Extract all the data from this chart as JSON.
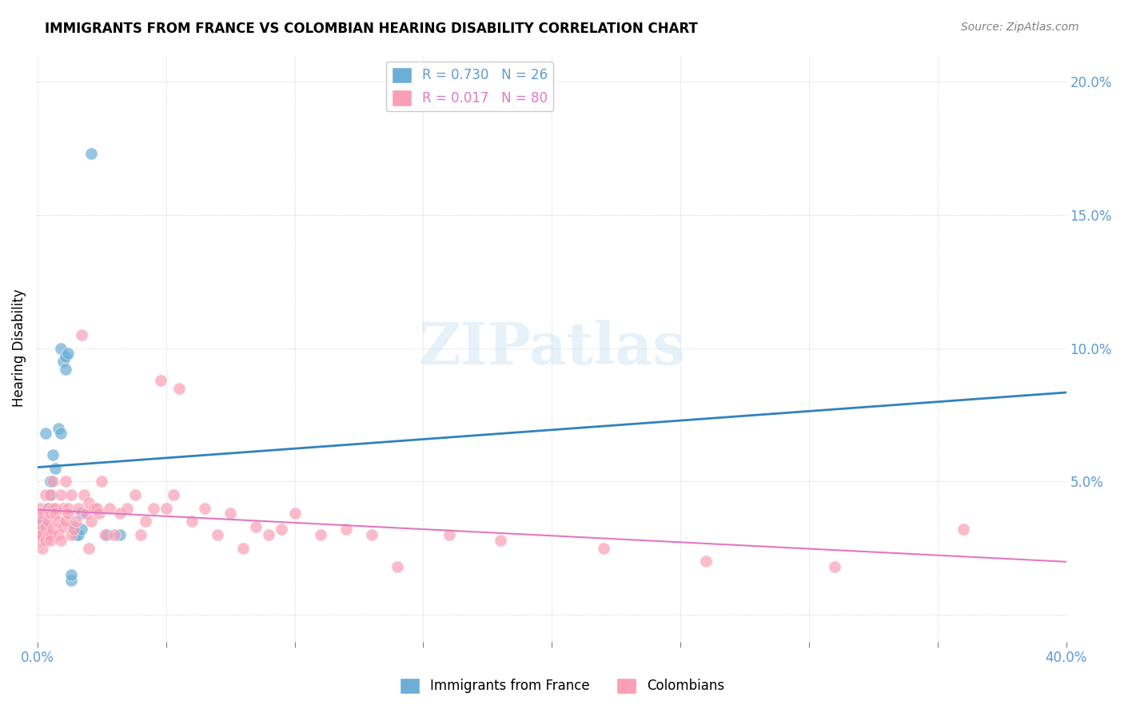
{
  "title": "IMMIGRANTS FROM FRANCE VS COLOMBIAN HEARING DISABILITY CORRELATION CHART",
  "source": "Source: ZipAtlas.com",
  "ylabel": "Hearing Disability",
  "xlabel": "",
  "xlim": [
    0.0,
    0.4
  ],
  "ylim": [
    -0.01,
    0.21
  ],
  "xticks": [
    0.0,
    0.05,
    0.1,
    0.15,
    0.2,
    0.25,
    0.3,
    0.35,
    0.4
  ],
  "xtick_labels": [
    "0.0%",
    "",
    "",
    "",
    "",
    "",
    "",
    "",
    "40.0%"
  ],
  "yticks": [
    0.0,
    0.05,
    0.1,
    0.15,
    0.2
  ],
  "ytick_labels": [
    "",
    "5.0%",
    "10.0%",
    "15.0%",
    "20.0%"
  ],
  "legend_r1": "R = 0.730",
  "legend_n1": "N = 26",
  "legend_r2": "R = 0.017",
  "legend_n2": "N = 80",
  "color_blue": "#6baed6",
  "color_pink": "#fa9fb5",
  "color_blue_line": "#3182bd",
  "color_pink_line": "#e377c2",
  "watermark": "ZIPatlas",
  "france_x": [
    0.001,
    0.002,
    0.002,
    0.003,
    0.004,
    0.005,
    0.005,
    0.006,
    0.007,
    0.008,
    0.009,
    0.009,
    0.01,
    0.011,
    0.011,
    0.012,
    0.013,
    0.013,
    0.014,
    0.015,
    0.016,
    0.017,
    0.017,
    0.021,
    0.027,
    0.032
  ],
  "france_y": [
    0.03,
    0.035,
    0.032,
    0.068,
    0.04,
    0.05,
    0.045,
    0.06,
    0.055,
    0.07,
    0.068,
    0.1,
    0.095,
    0.097,
    0.092,
    0.098,
    0.013,
    0.015,
    0.033,
    0.03,
    0.03,
    0.032,
    0.038,
    0.173,
    0.03,
    0.03
  ],
  "colombia_x": [
    0.001,
    0.001,
    0.001,
    0.001,
    0.002,
    0.002,
    0.002,
    0.002,
    0.003,
    0.003,
    0.003,
    0.004,
    0.004,
    0.004,
    0.005,
    0.005,
    0.005,
    0.005,
    0.006,
    0.006,
    0.006,
    0.007,
    0.007,
    0.008,
    0.008,
    0.009,
    0.009,
    0.01,
    0.01,
    0.011,
    0.011,
    0.012,
    0.012,
    0.013,
    0.013,
    0.014,
    0.015,
    0.016,
    0.017,
    0.018,
    0.019,
    0.02,
    0.02,
    0.021,
    0.022,
    0.023,
    0.024,
    0.025,
    0.026,
    0.028,
    0.03,
    0.032,
    0.035,
    0.038,
    0.04,
    0.042,
    0.045,
    0.048,
    0.05,
    0.053,
    0.055,
    0.06,
    0.065,
    0.07,
    0.075,
    0.08,
    0.085,
    0.09,
    0.095,
    0.1,
    0.11,
    0.12,
    0.13,
    0.14,
    0.16,
    0.18,
    0.22,
    0.26,
    0.31,
    0.36
  ],
  "colombia_y": [
    0.03,
    0.035,
    0.028,
    0.04,
    0.032,
    0.03,
    0.038,
    0.025,
    0.033,
    0.028,
    0.045,
    0.03,
    0.04,
    0.035,
    0.038,
    0.03,
    0.028,
    0.045,
    0.05,
    0.04,
    0.032,
    0.04,
    0.038,
    0.035,
    0.03,
    0.045,
    0.028,
    0.04,
    0.033,
    0.035,
    0.05,
    0.04,
    0.038,
    0.045,
    0.03,
    0.032,
    0.035,
    0.04,
    0.105,
    0.045,
    0.038,
    0.042,
    0.025,
    0.035,
    0.04,
    0.04,
    0.038,
    0.05,
    0.03,
    0.04,
    0.03,
    0.038,
    0.04,
    0.045,
    0.03,
    0.035,
    0.04,
    0.088,
    0.04,
    0.045,
    0.085,
    0.035,
    0.04,
    0.03,
    0.038,
    0.025,
    0.033,
    0.03,
    0.032,
    0.038,
    0.03,
    0.032,
    0.03,
    0.018,
    0.03,
    0.028,
    0.025,
    0.02,
    0.018,
    0.032
  ]
}
